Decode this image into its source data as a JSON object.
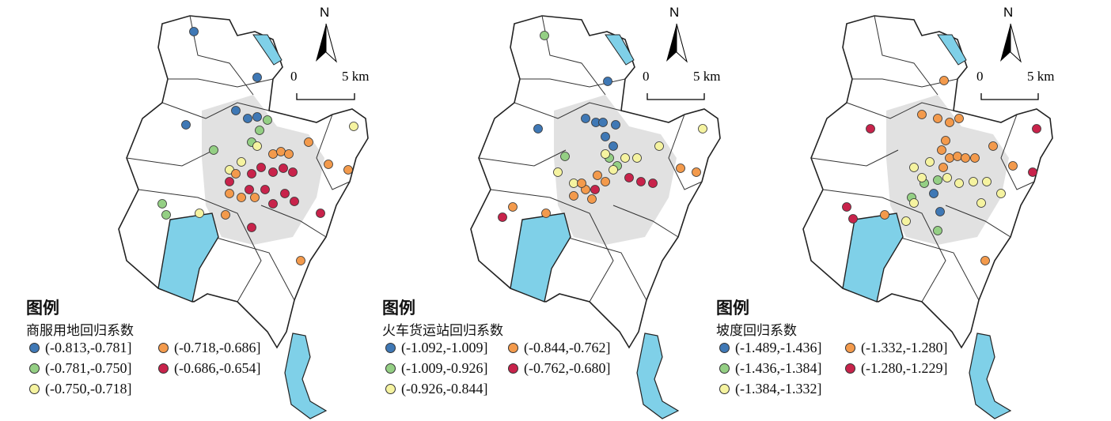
{
  "colors": {
    "class1": "#3f78b5",
    "class2": "#94cf84",
    "class3": "#f5f3a0",
    "class4": "#f39a4c",
    "class5": "#c8234b",
    "water": "#7fd0e8",
    "district_fill": "#ffffff",
    "urban_fill": "#d9d9d9"
  },
  "north_label": "N",
  "scale": {
    "zero": "0",
    "end": "5 km"
  },
  "panels": [
    {
      "legend_title": "图例",
      "variable": "商服用地回归系数",
      "classes": [
        "(-0.813,-0.781]",
        "(-0.781,-0.750]",
        "(-0.750,-0.718]",
        "(-0.718,-0.686]",
        "(-0.686,-0.654]"
      ]
    },
    {
      "legend_title": "图例",
      "variable": "火车货运站回归系数",
      "classes": [
        "(-1.092,-1.009]",
        "(-1.009,-0.926]",
        "(-0.926,-0.844]",
        "(-0.844,-0.762]",
        "(-0.762,-0.680]"
      ]
    },
    {
      "legend_title": "图例",
      "variable": "坡度回归系数",
      "classes": [
        "(-1.489,-1.436]",
        "(-1.436,-1.384]",
        "(-1.384,-1.332]",
        "(-1.332,-1.280]",
        "(-1.280,-1.229]"
      ]
    }
  ],
  "icons": {
    "north_arrow": "north-arrow-icon",
    "point": "circle-marker-icon"
  }
}
